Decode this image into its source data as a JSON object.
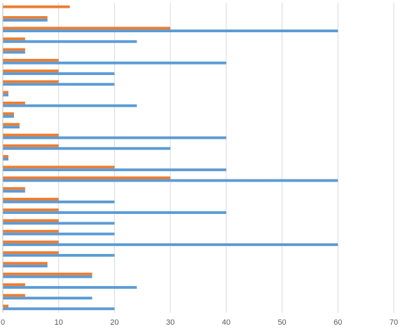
{
  "chart_data": {
    "type": "bar",
    "orientation": "horizontal",
    "xlim": [
      0,
      70
    ],
    "x_ticks": [
      "0",
      "10",
      "20",
      "30",
      "40",
      "50",
      "60",
      "70"
    ],
    "grid": "vertical",
    "colors": {
      "series_a": "#5B9BD5",
      "series_b": "#ED7D31",
      "grid": "#D9D9D9",
      "axis": "#BFBFBF"
    },
    "series": [
      {
        "values": [
          0,
          8,
          60,
          24,
          4,
          40,
          20,
          20,
          1,
          24,
          2,
          3,
          40,
          30,
          1,
          40,
          60,
          4,
          20,
          40,
          20,
          20,
          60,
          20,
          8,
          16,
          24,
          16,
          20
        ]
      },
      {
        "values": [
          12,
          8,
          30,
          4,
          4,
          10,
          10,
          10,
          1,
          4,
          2,
          3,
          10,
          10,
          1,
          20,
          30,
          4,
          10,
          10,
          10,
          10,
          10,
          10,
          8,
          16,
          4,
          4,
          1
        ]
      }
    ]
  }
}
